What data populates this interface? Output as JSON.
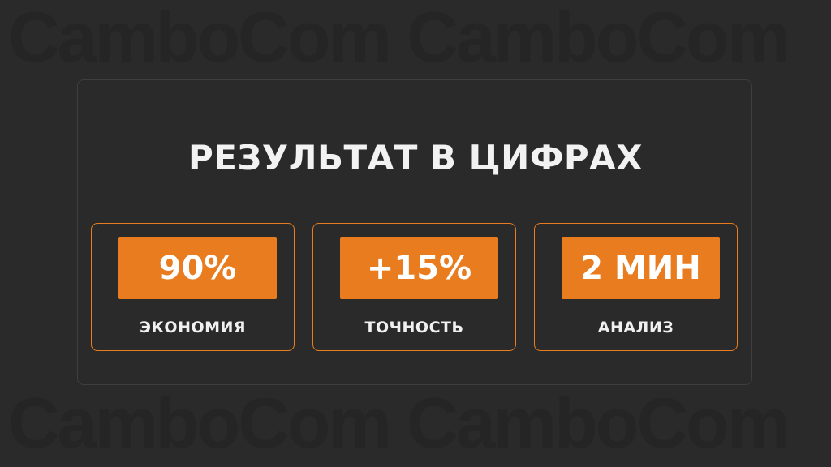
{
  "watermark": {
    "top": "CamboCom CamboCom",
    "bottom": "CamboCom CamboCom"
  },
  "title": "РЕЗУЛЬТАТ В ЦИФРАХ",
  "stats": [
    {
      "value": "90%",
      "label": "ЭКОНОМИЯ"
    },
    {
      "value": "+15%",
      "label": "ТОЧНОСТЬ"
    },
    {
      "value": "2 МИН",
      "label": "АНАЛИЗ"
    }
  ],
  "colors": {
    "accent": "#e87c1e",
    "background": "#2a2a2a"
  }
}
